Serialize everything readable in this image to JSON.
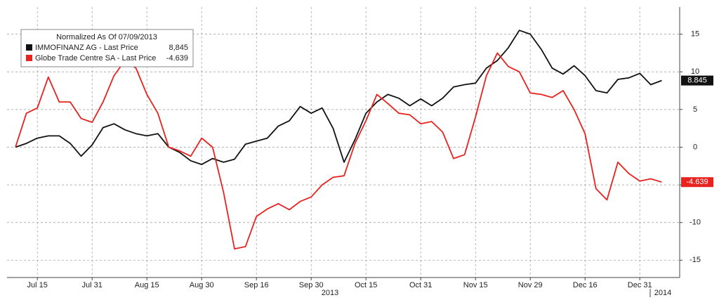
{
  "chart_data": {
    "type": "line",
    "legend_title": "Normalized As Of 07/09/2013",
    "categories": [
      null,
      null,
      "Jul 15",
      null,
      null,
      null,
      null,
      "Jul 31",
      null,
      null,
      null,
      null,
      "Aug 15",
      null,
      null,
      null,
      null,
      "Aug 30",
      null,
      null,
      null,
      null,
      "Sep 16",
      null,
      null,
      null,
      null,
      "Sep 30",
      null,
      null,
      null,
      null,
      "Oct 15",
      null,
      null,
      null,
      null,
      "Oct 31",
      null,
      null,
      null,
      null,
      "Nov 15",
      null,
      null,
      null,
      null,
      "Nov 29",
      null,
      null,
      null,
      null,
      "Dec 16",
      null,
      null,
      null,
      null,
      "Dec 31",
      null,
      null
    ],
    "year_labels": [
      "2013",
      "2014"
    ],
    "series": [
      {
        "name": "IMMOFINANZ AG - Last Price",
        "legend_value_label": "8,845",
        "color": "#111111",
        "values": [
          0,
          0.5,
          1.2,
          1.5,
          1.5,
          0.5,
          -1.2,
          0.3,
          2.6,
          3.1,
          2.3,
          1.8,
          1.5,
          1.8,
          0,
          -0.7,
          -1.8,
          -2.3,
          -1.5,
          -2,
          -1.6,
          0.4,
          0.8,
          1.2,
          2.8,
          3.5,
          5.4,
          4.5,
          5.2,
          2.5,
          -2,
          1,
          4.5,
          6,
          7,
          6.5,
          5.5,
          6.4,
          5.5,
          6.5,
          8,
          8.3,
          8.5,
          10.5,
          11.5,
          13.2,
          15.5,
          15,
          13,
          10.5,
          9.7,
          10.8,
          9.5,
          7.5,
          7.2,
          9,
          9.2,
          9.8,
          8.3,
          8.845
        ]
      },
      {
        "name": "Globe Trade Centre SA - Last Price",
        "color": "#e8221f",
        "values": [
          0,
          4.5,
          5.2,
          9.3,
          6,
          6,
          3.8,
          3.3,
          6,
          9.5,
          11.5,
          10.5,
          7,
          4.5,
          0,
          -0.5,
          -1.2,
          1.2,
          0,
          -6,
          -13.5,
          -13.2,
          -9.2,
          -8.2,
          -7.5,
          -8.3,
          -7.2,
          -6.6,
          -5,
          -4,
          -3.8,
          0.5,
          3.5,
          7,
          5.8,
          4.5,
          4.3,
          3.1,
          3.4,
          2,
          -1.5,
          -1,
          4,
          9.5,
          12.5,
          10.7,
          10,
          7.2,
          7,
          6.6,
          7.5,
          5,
          1.8,
          -5.5,
          -7,
          -2,
          -3.5,
          -4.5,
          -4.2,
          -4.639
        ]
      }
    ],
    "ylim": [
      -17.3,
      18.6
    ],
    "yticks": [
      15,
      10,
      5,
      0,
      -5,
      -10,
      -15
    ],
    "grid": true
  }
}
